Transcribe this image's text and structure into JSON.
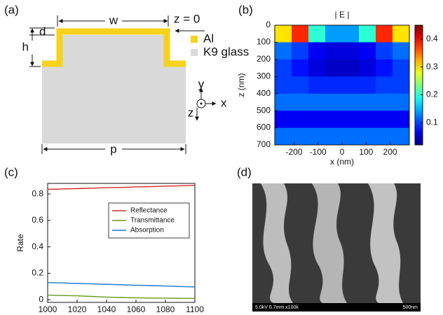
{
  "figure": {
    "a": {
      "label": "(a)",
      "w": "w",
      "z0": "z = 0",
      "d": "d",
      "h": "h",
      "p": "p",
      "al": "Al",
      "glass": "K9 glass",
      "axis_y": "y",
      "axis_x": "x",
      "axis_z": "z",
      "al_color": "#f7d21b",
      "glass_color": "#d9d9d9"
    },
    "d": {
      "label": "(d)",
      "sem_info": "5.0kV 6.7mm x100k",
      "scale": "500nm"
    }
  },
  "chart_data": [
    {
      "type": "heatmap",
      "panel_label": "(b)",
      "title": "| E |",
      "x_label": "x (nm)",
      "y_label": "z (nm)",
      "x": [
        -245,
        -175,
        -105,
        -35,
        35,
        105,
        175,
        245
      ],
      "y": [
        50,
        150,
        250,
        350,
        450,
        550,
        650
      ],
      "values": [
        [
          0.3,
          0.38,
          0.2,
          0.14,
          0.14,
          0.2,
          0.38,
          0.3
        ],
        [
          0.12,
          0.1,
          0.07,
          0.06,
          0.06,
          0.07,
          0.1,
          0.12
        ],
        [
          0.1,
          0.08,
          0.06,
          0.05,
          0.05,
          0.06,
          0.08,
          0.1
        ],
        [
          0.1,
          0.1,
          0.09,
          0.09,
          0.09,
          0.09,
          0.1,
          0.1
        ],
        [
          0.12,
          0.12,
          0.12,
          0.12,
          0.12,
          0.12,
          0.12,
          0.12
        ],
        [
          0.07,
          0.07,
          0.07,
          0.07,
          0.07,
          0.07,
          0.07,
          0.07
        ],
        [
          0.12,
          0.12,
          0.12,
          0.12,
          0.12,
          0.12,
          0.12,
          0.12
        ]
      ],
      "xlim": [
        -280,
        280
      ],
      "xticks": [
        -200,
        -100,
        0,
        100,
        200
      ],
      "ylim": [
        0,
        700
      ],
      "yticks": [
        0,
        100,
        200,
        300,
        400,
        500,
        600,
        700
      ],
      "y_inverted": true,
      "colormap": "jet",
      "clim": [
        0.02,
        0.45
      ],
      "cticks": [
        0.1,
        0.2,
        0.3,
        0.4
      ]
    },
    {
      "type": "line",
      "panel_label": "(c)",
      "y_label": "Rate",
      "x": [
        1000,
        1010,
        1020,
        1030,
        1040,
        1050,
        1060,
        1070,
        1080,
        1090,
        1100
      ],
      "series": [
        {
          "name": "Reflectance",
          "color": "#d62728",
          "values": [
            0.835,
            0.838,
            0.841,
            0.844,
            0.847,
            0.85,
            0.853,
            0.856,
            0.859,
            0.862,
            0.865
          ]
        },
        {
          "name": "Transmittance",
          "color": "#6a9a1f",
          "values": [
            0.035,
            0.032,
            0.03,
            0.025,
            0.02,
            0.017,
            0.015,
            0.013,
            0.012,
            0.011,
            0.01
          ]
        },
        {
          "name": "Absorption",
          "color": "#1f77d4",
          "values": [
            0.13,
            0.127,
            0.123,
            0.12,
            0.117,
            0.113,
            0.11,
            0.107,
            0.104,
            0.1,
            0.097
          ]
        }
      ],
      "xlim": [
        1000,
        1100
      ],
      "xticks": [
        1000,
        1020,
        1040,
        1060,
        1080,
        1100
      ],
      "ylim": [
        -0.02,
        0.88
      ],
      "yticks": [
        0,
        0.2,
        0.4,
        0.6,
        0.8
      ],
      "legend": "upper right"
    }
  ]
}
